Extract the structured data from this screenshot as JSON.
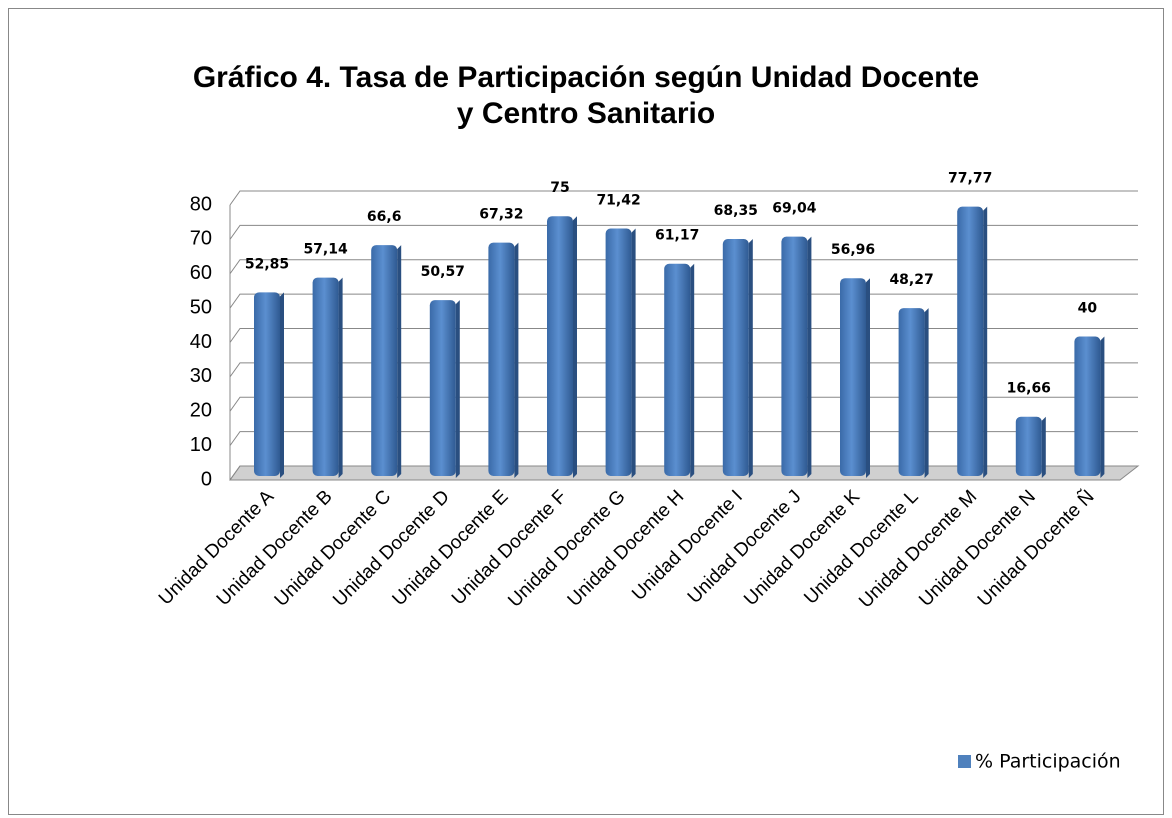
{
  "chart_data": {
    "type": "bar",
    "title": "Gráfico 4. Tasa de Participación según Unidad Docente y Centro Sanitario",
    "categories": [
      "Unidad Docente A",
      "Unidad Docente B",
      "Unidad Docente C",
      "Unidad Docente D",
      "Unidad Docente E",
      "Unidad Docente F",
      "Unidad Docente G",
      "Unidad Docente H",
      "Unidad Docente I",
      "Unidad Docente J",
      "Unidad Docente K",
      "Unidad Docente L",
      "Unidad Docente M",
      "Unidad Docente N",
      "Unidad Docente Ñ"
    ],
    "series": [
      {
        "name": "% Participación",
        "color": "#4f81bd",
        "values": [
          52.85,
          57.14,
          66.6,
          50.57,
          67.32,
          75,
          71.42,
          61.17,
          68.35,
          69.04,
          56.96,
          48.27,
          77.77,
          16.66,
          40
        ],
        "value_labels": [
          "52,85",
          "57,14",
          "66,6",
          "50,57",
          "67,32",
          "75",
          "71,42",
          "61,17",
          "68,35",
          "69,04",
          "56,96",
          "48,27",
          "77,77",
          "16,66",
          "40"
        ]
      }
    ],
    "ylim": [
      0,
      80
    ],
    "yticks": [
      0,
      10,
      20,
      30,
      40,
      50,
      60,
      70,
      80
    ],
    "grid": true,
    "legend": "bottom-right"
  }
}
